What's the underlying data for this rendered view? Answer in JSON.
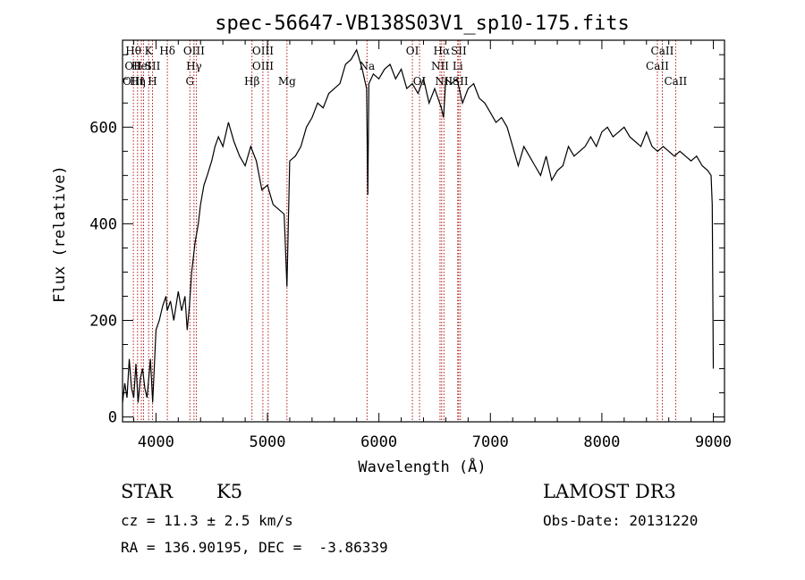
{
  "chart_data": {
    "type": "line",
    "title": "spec-56647-VB138S03V1_sp10-175.fits",
    "xlabel": "Wavelength (Å)",
    "ylabel": "Flux (relative)",
    "xlim": [
      3700,
      9100
    ],
    "ylim": [
      -10,
      780
    ],
    "xticks": [
      4000,
      5000,
      6000,
      7000,
      8000,
      9000
    ],
    "yticks": [
      0,
      200,
      400,
      600
    ],
    "grid": false,
    "series": [
      {
        "x": [
          3700,
          3720,
          3740,
          3760,
          3780,
          3800,
          3820,
          3840,
          3860,
          3880,
          3900,
          3920,
          3950,
          3970,
          4000,
          4030,
          4060,
          4090,
          4100,
          4130,
          4160,
          4200,
          4230,
          4260,
          4280,
          4300,
          4320,
          4350,
          4380,
          4400,
          4430,
          4460,
          4500,
          4530,
          4560,
          4600,
          4650,
          4700,
          4750,
          4800,
          4850,
          4900,
          4950,
          5000,
          5050,
          5100,
          5150,
          5175,
          5200,
          5250,
          5300,
          5350,
          5400,
          5450,
          5500,
          5550,
          5600,
          5650,
          5700,
          5750,
          5800,
          5850,
          5870,
          5890,
          5900,
          5910,
          5950,
          6000,
          6050,
          6100,
          6150,
          6200,
          6250,
          6300,
          6350,
          6400,
          6450,
          6500,
          6560,
          6580,
          6600,
          6650,
          6700,
          6750,
          6800,
          6850,
          6900,
          6950,
          7000,
          7050,
          7100,
          7150,
          7200,
          7250,
          7300,
          7350,
          7400,
          7450,
          7500,
          7550,
          7600,
          7650,
          7700,
          7750,
          7800,
          7850,
          7900,
          7950,
          8000,
          8050,
          8100,
          8150,
          8200,
          8250,
          8300,
          8350,
          8400,
          8450,
          8500,
          8550,
          8600,
          8650,
          8700,
          8750,
          8800,
          8850,
          8900,
          8950,
          8980,
          8990,
          9000
        ],
        "y": [
          30,
          70,
          40,
          120,
          60,
          40,
          110,
          30,
          80,
          100,
          60,
          40,
          120,
          30,
          180,
          200,
          230,
          250,
          220,
          240,
          200,
          260,
          220,
          250,
          180,
          230,
          300,
          360,
          400,
          440,
          480,
          500,
          530,
          560,
          580,
          560,
          610,
          570,
          540,
          520,
          560,
          530,
          470,
          480,
          440,
          430,
          420,
          270,
          530,
          540,
          560,
          600,
          620,
          650,
          640,
          670,
          680,
          690,
          730,
          740,
          760,
          720,
          700,
          680,
          460,
          690,
          710,
          700,
          720,
          730,
          700,
          720,
          680,
          690,
          670,
          700,
          650,
          680,
          640,
          620,
          700,
          690,
          700,
          650,
          680,
          690,
          660,
          650,
          630,
          610,
          620,
          600,
          560,
          520,
          560,
          540,
          520,
          500,
          540,
          490,
          510,
          520,
          560,
          540,
          550,
          560,
          580,
          560,
          590,
          600,
          580,
          590,
          600,
          580,
          570,
          560,
          590,
          560,
          550,
          560,
          550,
          540,
          550,
          540,
          530,
          540,
          520,
          510,
          500,
          440,
          100
        ]
      }
    ],
    "lines": [
      {
        "wl": 3797,
        "labels": [
          "Hθ",
          "OII",
          "OIII"
        ]
      },
      {
        "wl": 3835,
        "labels": [
          "",
          "",
          "Hη"
        ]
      },
      {
        "wl": 3869,
        "labels": [
          "",
          "HeI",
          ""
        ]
      },
      {
        "wl": 3889,
        "labels": [
          "",
          "",
          ""
        ]
      },
      {
        "wl": 3934,
        "labels": [
          "K",
          "",
          ""
        ]
      },
      {
        "wl": 3969,
        "labels": [
          "",
          "SII",
          "H"
        ]
      },
      {
        "wl": 4102,
        "labels": [
          "Hδ",
          "",
          ""
        ]
      },
      {
        "wl": 4304,
        "labels": [
          "",
          "",
          "G"
        ]
      },
      {
        "wl": 4341,
        "labels": [
          "OIII",
          "Hγ",
          ""
        ]
      },
      {
        "wl": 4363,
        "labels": [
          "",
          "",
          ""
        ]
      },
      {
        "wl": 4861,
        "labels": [
          "",
          "",
          "Hβ"
        ]
      },
      {
        "wl": 4959,
        "labels": [
          "OIII",
          "OIII",
          ""
        ]
      },
      {
        "wl": 5007,
        "labels": [
          "",
          "",
          ""
        ]
      },
      {
        "wl": 5175,
        "labels": [
          "",
          "",
          "Mg"
        ]
      },
      {
        "wl": 5893,
        "labels": [
          "",
          "Na",
          ""
        ]
      },
      {
        "wl": 6300,
        "labels": [
          "OI",
          "",
          ""
        ]
      },
      {
        "wl": 6364,
        "labels": [
          "",
          "",
          "OI"
        ]
      },
      {
        "wl": 6548,
        "labels": [
          "",
          "NII",
          ""
        ]
      },
      {
        "wl": 6563,
        "labels": [
          "Hα",
          "",
          ""
        ]
      },
      {
        "wl": 6583,
        "labels": [
          "",
          "",
          "NII"
        ]
      },
      {
        "wl": 6707,
        "labels": [
          "",
          "Li",
          ""
        ]
      },
      {
        "wl": 6716,
        "labels": [
          "SII",
          "",
          ""
        ]
      },
      {
        "wl": 6731,
        "labels": [
          "",
          "",
          "SII"
        ]
      },
      {
        "wl": 8498,
        "labels": [
          "",
          "CaII",
          ""
        ]
      },
      {
        "wl": 8542,
        "labels": [
          "CaII",
          "",
          ""
        ]
      },
      {
        "wl": 8662,
        "labels": [
          "",
          "",
          "CaII"
        ]
      }
    ]
  },
  "info": {
    "object_type": "STAR",
    "subclass": "K5",
    "survey": "LAMOST DR3",
    "redshift": "cz = 11.3 ± 2.5 km/s",
    "obs_date": "Obs-Date: 20131220",
    "coords": "RA = 136.90195, DEC =  -3.86339"
  },
  "colors": {
    "spectrum": "#000000",
    "line_marker": "#aa0000"
  }
}
